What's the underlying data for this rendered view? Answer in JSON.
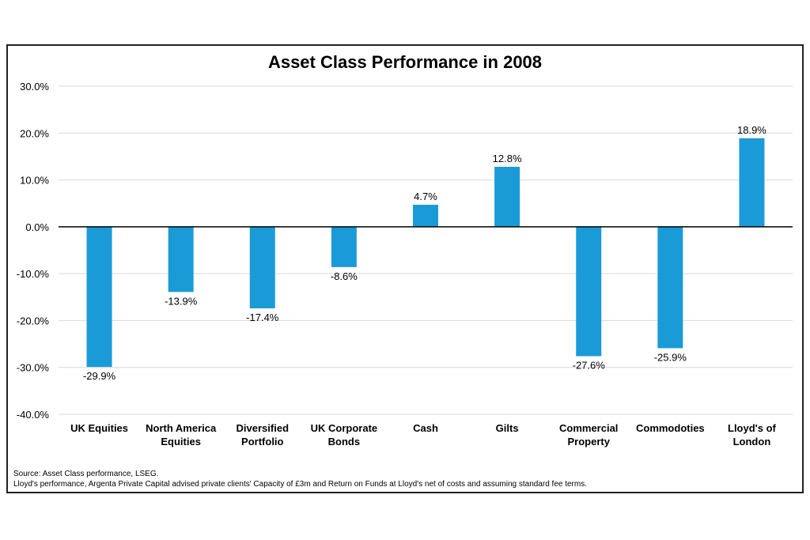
{
  "chart_data": {
    "type": "bar",
    "title": "Asset Class Performance in 2008",
    "categories": [
      [
        "UK Equities"
      ],
      [
        "North America",
        "Equities"
      ],
      [
        "Diversified",
        "Portfolio"
      ],
      [
        "UK Corporate",
        "Bonds"
      ],
      [
        "Cash"
      ],
      [
        "Gilts"
      ],
      [
        "Commercial",
        "Property"
      ],
      [
        "Commodoties"
      ],
      [
        "Lloyd's of",
        "London"
      ]
    ],
    "values": [
      -29.9,
      -13.9,
      -17.4,
      -8.6,
      4.7,
      12.8,
      -27.6,
      -25.9,
      18.9
    ],
    "value_labels": [
      "-29.9%",
      "-13.9%",
      "-17.4%",
      "-8.6%",
      "4.7%",
      "12.8%",
      "-27.6%",
      "-25.9%",
      "18.9%"
    ],
    "ylim": [
      -40,
      30
    ],
    "yticks": [
      30,
      20,
      10,
      0,
      -10,
      -20,
      -30,
      -40
    ],
    "ytick_labels": [
      "30.0%",
      "20.0%",
      "10.0%",
      "0.0%",
      "-10.0%",
      "-20.0%",
      "-30.0%",
      "-40.0%"
    ],
    "bar_color": "#1a9bd7",
    "grid": true
  },
  "footnotes": [
    "Source: Asset Class performance, LSEG.",
    "Lloyd's performance, Argenta Private Capital advised private clients' Capacity of £3m and Return on Funds at Lloyd's net of costs and assuming standard fee terms."
  ]
}
